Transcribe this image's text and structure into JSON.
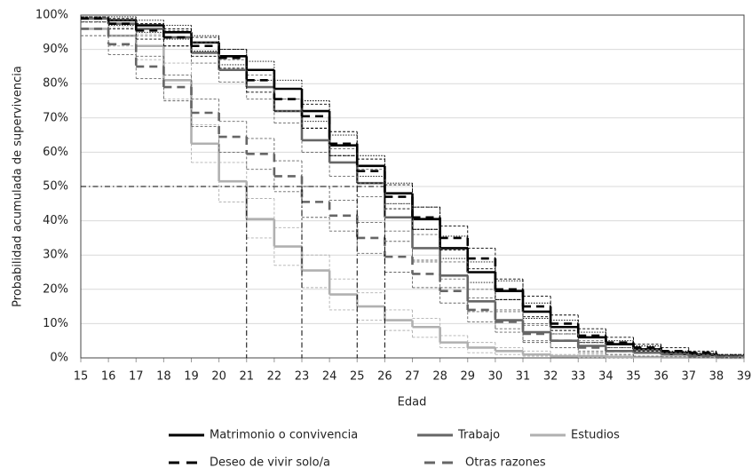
{
  "chart_data": {
    "type": "step",
    "x_label": "Edad",
    "y_label": "Probabilidad acumulada de supervivencia",
    "x": [
      15,
      16,
      17,
      18,
      19,
      20,
      21,
      22,
      23,
      24,
      25,
      26,
      27,
      28,
      29,
      30,
      31,
      32,
      33,
      34,
      35,
      36,
      37,
      38
    ],
    "xlim": [
      15,
      39
    ],
    "xticks": [
      15,
      16,
      17,
      18,
      19,
      20,
      21,
      22,
      23,
      24,
      25,
      26,
      27,
      28,
      29,
      30,
      31,
      32,
      33,
      34,
      35,
      36,
      37,
      38,
      39
    ],
    "ylim": [
      0,
      100
    ],
    "yticks": [
      {
        "value": 0,
        "label": "0%"
      },
      {
        "value": 10,
        "label": "10%"
      },
      {
        "value": 20,
        "label": "20%"
      },
      {
        "value": 30,
        "label": "30%"
      },
      {
        "value": 40,
        "label": "40%"
      },
      {
        "value": 50,
        "label": "50%"
      },
      {
        "value": 60,
        "label": "60%"
      },
      {
        "value": 70,
        "label": "70%"
      },
      {
        "value": 80,
        "label": "80%"
      },
      {
        "value": 90,
        "label": "90%"
      },
      {
        "value": 100,
        "label": "100%"
      }
    ],
    "grid": true,
    "legend": "bottom",
    "reference_lines": {
      "y": 50,
      "x": [
        21,
        23,
        25,
        26
      ]
    },
    "series": [
      {
        "name": "Matrimonio o convivencia",
        "color": "#000000",
        "line_style": "solid",
        "values": [
          99,
          98.5,
          97,
          95,
          92,
          88,
          84,
          78.5,
          72,
          62,
          56,
          48,
          40.5,
          32,
          25,
          19.5,
          13.5,
          9,
          6,
          4,
          2.5,
          1.5,
          1,
          0.5
        ],
        "upper": [
          99.5,
          99.5,
          98.5,
          97,
          94,
          90,
          86.5,
          81,
          75,
          65,
          59,
          51,
          44,
          35.5,
          28,
          22.5,
          16,
          11,
          7.5,
          5,
          3.5,
          2,
          1.5,
          1
        ],
        "lower": [
          98,
          97,
          95,
          93,
          89.5,
          85.5,
          81,
          75.5,
          69,
          59,
          53,
          45,
          37.5,
          29,
          22,
          17,
          11.5,
          7,
          4.5,
          3,
          1.5,
          1,
          0.5,
          0
        ]
      },
      {
        "name": "Trabajo",
        "color": "#666666",
        "line_style": "solid",
        "values": [
          99,
          97.5,
          96,
          93.5,
          89,
          84,
          79,
          72,
          63.5,
          57,
          51,
          41,
          32,
          24,
          16.5,
          11,
          7.5,
          5,
          3.5,
          2,
          1.5,
          1,
          0.5,
          0.3
        ],
        "upper": [
          99.5,
          98.5,
          97.5,
          95.5,
          92,
          87,
          82.5,
          75.5,
          67,
          61,
          55,
          45,
          36,
          28,
          20,
          14,
          10,
          7,
          5,
          3,
          2.5,
          1.5,
          1,
          0.6
        ],
        "lower": [
          98,
          96,
          94,
          91,
          86,
          80.5,
          75.5,
          68.5,
          60,
          53,
          47,
          37,
          28,
          20.5,
          13.5,
          8.5,
          5,
          3,
          2,
          1,
          0.5,
          0.3,
          0.1,
          0
        ]
      },
      {
        "name": "Estudios",
        "color": "#b0b0b0",
        "line_style": "solid",
        "values": [
          96,
          94,
          91,
          81,
          62.5,
          51.5,
          40.5,
          32.5,
          25.5,
          18.5,
          15,
          11,
          9,
          4.5,
          3,
          2,
          1,
          0.5,
          0.5,
          0.3,
          0.2,
          0.1,
          0.1,
          0
        ],
        "upper": [
          98,
          96.5,
          94.5,
          86,
          68,
          57,
          46.5,
          38,
          30,
          23,
          19,
          14,
          11.5,
          6.5,
          4.5,
          3,
          2,
          1,
          1,
          0.6,
          0.4,
          0.3,
          0.2,
          0.1
        ],
        "lower": [
          94,
          91,
          87,
          75.5,
          57,
          45.5,
          35,
          27,
          20.5,
          14,
          11,
          8,
          6,
          3,
          1.5,
          1,
          0.5,
          0.2,
          0.1,
          0,
          0,
          0,
          0,
          0
        ]
      },
      {
        "name": "Deseo de vivir solo/a",
        "color": "#000000",
        "line_style": "dashed",
        "values": [
          99,
          97.5,
          95.5,
          93.5,
          91,
          87.5,
          81,
          75.5,
          70.5,
          62.5,
          54.5,
          47,
          41,
          35,
          29,
          20,
          15,
          10,
          6.5,
          4.5,
          3,
          2,
          1.5,
          0.5
        ],
        "upper": [
          99.5,
          99,
          97.5,
          96,
          93.5,
          90,
          84,
          78.5,
          74,
          66,
          58,
          50.5,
          44,
          38.5,
          32,
          23,
          18,
          12.5,
          8.5,
          6,
          4,
          3,
          2,
          1
        ],
        "lower": [
          98,
          96,
          93,
          91,
          88,
          84.5,
          77.5,
          72,
          67,
          59,
          51,
          43.5,
          37.5,
          31.5,
          26,
          17,
          12,
          8,
          4.5,
          3,
          2,
          1,
          0.7,
          0.1
        ]
      },
      {
        "name": "Otras razones",
        "color": "#666666",
        "line_style": "dashed",
        "values": [
          96,
          91.5,
          85,
          79,
          71.5,
          64.5,
          59.5,
          53,
          45.5,
          41.5,
          35,
          29.5,
          24.5,
          19.5,
          14,
          10.5,
          7,
          5,
          3,
          2,
          1.5,
          1,
          0.5,
          0.3
        ],
        "upper": [
          98,
          94,
          88,
          82.5,
          75.5,
          69,
          64,
          57.5,
          50,
          46,
          39.5,
          34,
          28.5,
          23,
          17.5,
          13.5,
          9.5,
          7,
          4.5,
          3,
          2.5,
          1.5,
          1,
          0.6
        ],
        "lower": [
          94,
          88.5,
          81.5,
          75,
          67.5,
          60,
          55,
          48.5,
          41,
          37,
          30.5,
          25,
          20.5,
          16,
          10.5,
          7.5,
          4.5,
          3,
          1.5,
          1,
          0.5,
          0.3,
          0.1,
          0
        ]
      }
    ]
  }
}
